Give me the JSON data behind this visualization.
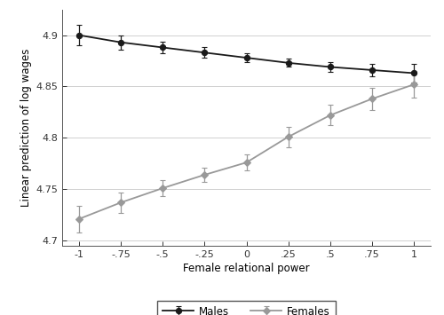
{
  "x": [
    -1,
    -0.75,
    -0.5,
    -0.25,
    0,
    0.25,
    0.5,
    0.75,
    1
  ],
  "males_y": [
    4.9,
    4.893,
    4.888,
    4.883,
    4.878,
    4.873,
    4.869,
    4.866,
    4.863
  ],
  "males_err_lo": [
    0.01,
    0.007,
    0.006,
    0.005,
    0.004,
    0.004,
    0.005,
    0.006,
    0.009
  ],
  "males_err_hi": [
    0.01,
    0.007,
    0.006,
    0.005,
    0.004,
    0.004,
    0.005,
    0.006,
    0.009
  ],
  "females_y": [
    4.721,
    4.737,
    4.751,
    4.764,
    4.776,
    4.801,
    4.822,
    4.838,
    4.852
  ],
  "females_err_lo": [
    0.013,
    0.01,
    0.008,
    0.007,
    0.008,
    0.01,
    0.01,
    0.011,
    0.013
  ],
  "females_err_hi": [
    0.013,
    0.01,
    0.008,
    0.007,
    0.008,
    0.01,
    0.01,
    0.011,
    0.013
  ],
  "xlabel": "Female relational power",
  "ylabel": "Linear prediction of log wages",
  "ylim": [
    4.695,
    4.925
  ],
  "yticks": [
    4.7,
    4.75,
    4.8,
    4.85,
    4.9
  ],
  "ytick_labels": [
    "4.7",
    "4.75",
    "4.8",
    "4.85",
    "4.9"
  ],
  "xticks": [
    -1,
    -0.75,
    -0.5,
    -0.25,
    0,
    0.25,
    0.5,
    0.75,
    1
  ],
  "xtick_labels": [
    "-1",
    "-.75",
    "-.5",
    "-.25",
    "0",
    ".25",
    ".5",
    ".75",
    "1"
  ],
  "males_color": "#1a1a1a",
  "females_color": "#999999",
  "background_color": "#ffffff",
  "grid_color": "#d0d0d0",
  "legend_labels": [
    "Males",
    "Females"
  ],
  "xlim": [
    -1.1,
    1.1
  ]
}
